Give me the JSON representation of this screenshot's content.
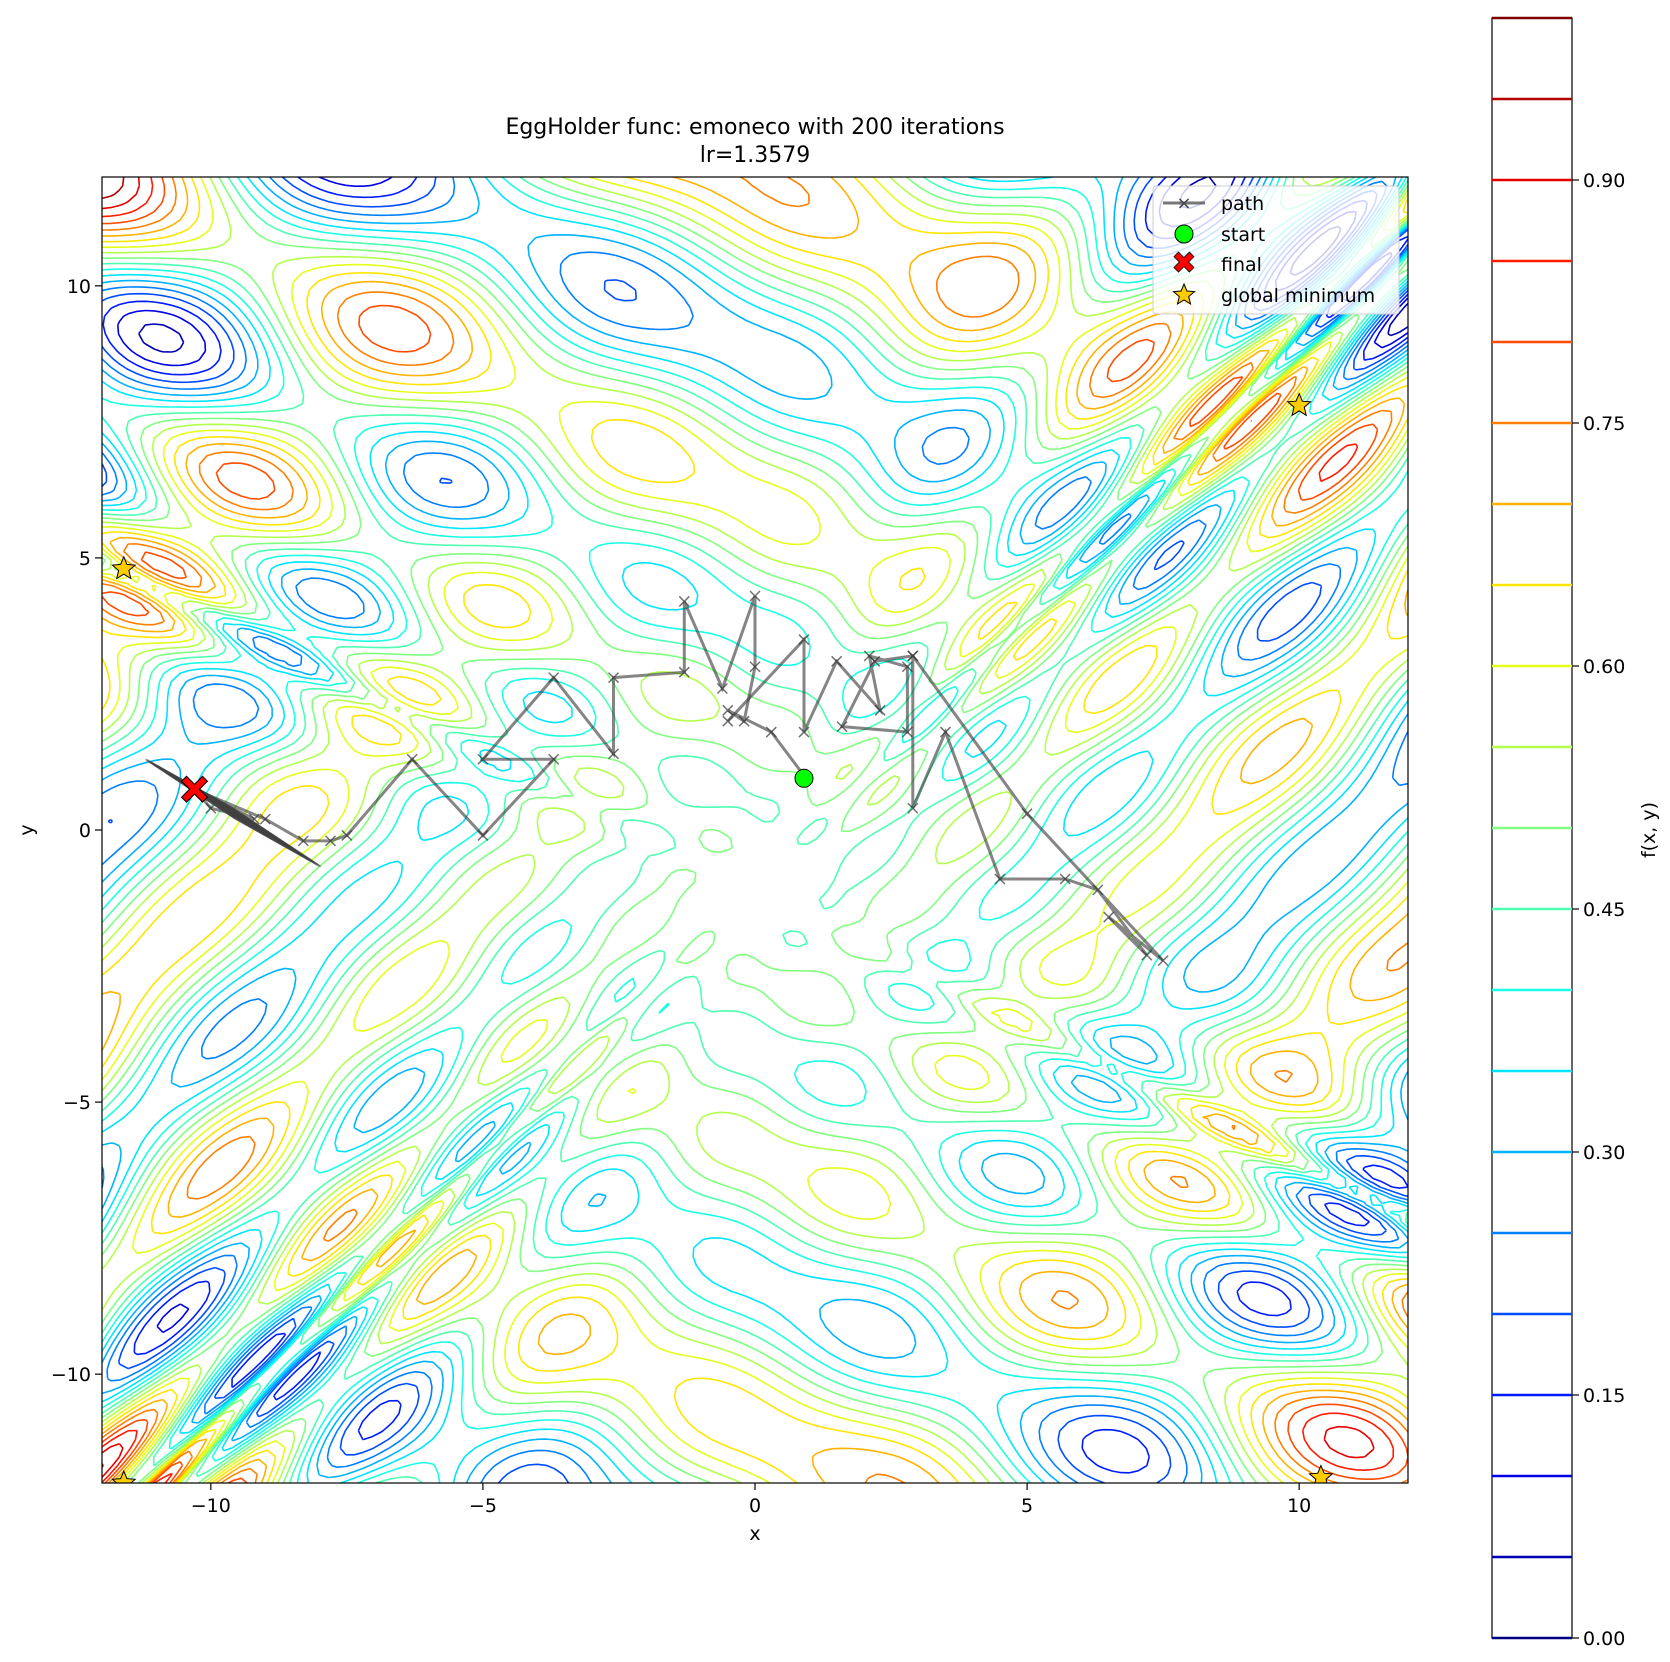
{
  "chart_data": {
    "type": "contour",
    "title": "EggHolder func: emoneco with 200 iterations",
    "subtitle": "lr=1.3579",
    "xlabel": "x",
    "ylabel": "y",
    "xlim": [
      -12,
      12
    ],
    "ylim": [
      -12,
      12
    ],
    "xticks": [
      -10,
      -5,
      0,
      5,
      10
    ],
    "yticks": [
      -10,
      -5,
      0,
      5,
      10
    ],
    "xtick_labels": [
      "−10",
      "−5",
      "0",
      "5",
      "10"
    ],
    "ytick_labels": [
      "−10",
      "−5",
      "0",
      "5",
      "10"
    ],
    "colorbar": {
      "label": "f(x, y)",
      "range": [
        0.0,
        1.0
      ],
      "levels": [
        0.0,
        0.05,
        0.1,
        0.15,
        0.2,
        0.25,
        0.3,
        0.35,
        0.4,
        0.45,
        0.5,
        0.55,
        0.6,
        0.65,
        0.7,
        0.75,
        0.8,
        0.85,
        0.9,
        0.95,
        1.0
      ],
      "ticks": [
        0.0,
        0.15,
        0.3,
        0.45,
        0.6,
        0.75,
        0.9
      ],
      "tick_labels": [
        "0.00",
        "0.15",
        "0.30",
        "0.45",
        "0.60",
        "0.75",
        "0.90"
      ],
      "colormap": "jet"
    },
    "legend": {
      "placement": "top-right",
      "entries": [
        {
          "key": "path",
          "label": "path"
        },
        {
          "key": "start",
          "label": "start"
        },
        {
          "key": "final",
          "label": "final"
        },
        {
          "key": "global_minimum",
          "label": "global minimum"
        }
      ]
    },
    "path": [
      [
        0.9,
        1.0
      ],
      [
        0.3,
        1.8
      ],
      [
        -0.5,
        2.2
      ],
      [
        -0.2,
        2.0
      ],
      [
        0.0,
        3.0
      ],
      [
        0.0,
        4.3
      ],
      [
        -0.6,
        2.6
      ],
      [
        -1.3,
        4.2
      ],
      [
        -1.3,
        2.9
      ],
      [
        -2.6,
        2.8
      ],
      [
        -2.6,
        1.4
      ],
      [
        -3.7,
        2.8
      ],
      [
        -5.0,
        1.3
      ],
      [
        -3.7,
        1.3
      ],
      [
        -5.0,
        -0.1
      ],
      [
        -6.3,
        1.3
      ],
      [
        -7.5,
        -0.1
      ],
      [
        -7.8,
        -0.2
      ],
      [
        -8.3,
        -0.2
      ],
      [
        -9.0,
        0.2
      ],
      [
        -10.3,
        0.75
      ],
      [
        -9.2,
        0.2
      ],
      [
        -10.0,
        0.4
      ],
      [
        -10.3,
        0.75
      ]
    ],
    "path2": [
      [
        -0.5,
        2.0
      ],
      [
        0.9,
        3.5
      ],
      [
        0.9,
        1.8
      ],
      [
        1.5,
        3.1
      ],
      [
        2.3,
        2.2
      ],
      [
        2.1,
        3.2
      ],
      [
        2.8,
        3.0
      ],
      [
        2.8,
        1.8
      ],
      [
        1.6,
        1.9
      ],
      [
        2.2,
        3.1
      ],
      [
        2.9,
        3.2
      ],
      [
        2.9,
        0.4
      ],
      [
        3.5,
        1.8
      ],
      [
        4.5,
        -0.9
      ],
      [
        5.7,
        -0.9
      ],
      [
        6.3,
        -1.1
      ],
      [
        7.2,
        -2.3
      ],
      [
        6.5,
        -1.6
      ],
      [
        7.5,
        -2.4
      ],
      [
        5.0,
        0.3
      ],
      [
        2.9,
        3.2
      ]
    ],
    "final_cluster": {
      "x_range": [
        -11.2,
        -7.6
      ],
      "y_range": [
        -0.65,
        1.3
      ]
    },
    "start": [
      0.9,
      0.95
    ],
    "final": [
      -10.3,
      0.75
    ],
    "global_minima": [
      [
        -11.6,
        4.8
      ],
      [
        10.0,
        7.8
      ],
      [
        10.4,
        -11.9
      ],
      [
        -11.6,
        -12.0
      ]
    ]
  }
}
